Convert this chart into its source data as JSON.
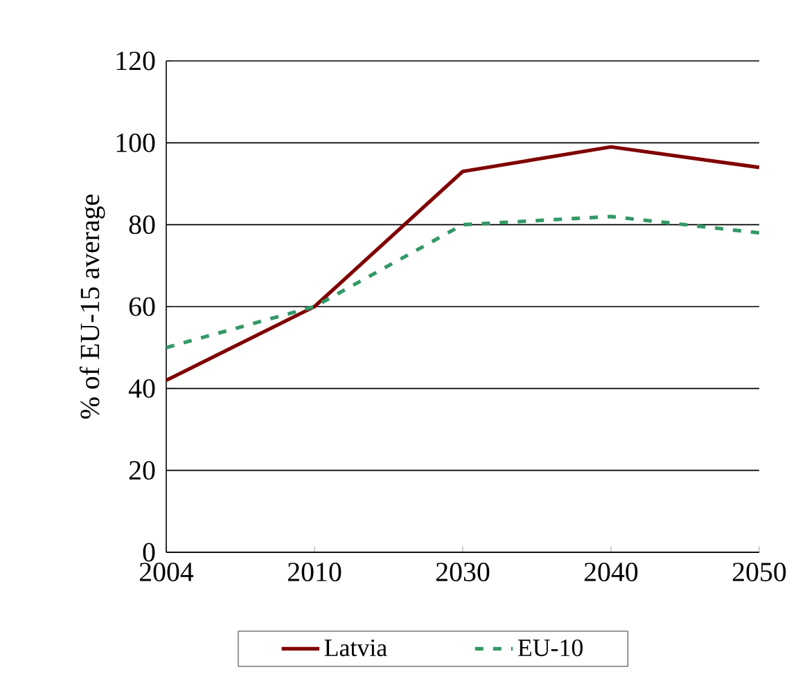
{
  "chart_data": {
    "type": "line",
    "ylabel": "% of EU-15 average",
    "categories": [
      "2004",
      "2010",
      "2030",
      "2040",
      "2050"
    ],
    "series": [
      {
        "name": "Latvia",
        "color": "#800000",
        "line_style": "solid",
        "values": [
          42,
          60,
          93,
          99,
          94
        ]
      },
      {
        "name": "EU-10",
        "color": "#339966",
        "line_style": "dashed",
        "values": [
          50,
          60,
          80,
          82,
          78
        ]
      }
    ],
    "ylim": [
      0,
      120
    ],
    "yticks": [
      0,
      20,
      40,
      60,
      80,
      100,
      120
    ],
    "grid": "y",
    "legend": "bottom",
    "marker": "none"
  }
}
